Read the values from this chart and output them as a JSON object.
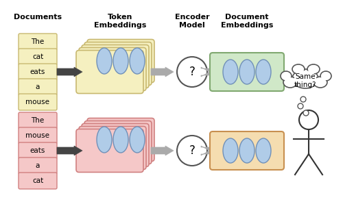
{
  "bg_color": "#ffffff",
  "doc1_words": [
    "The",
    "cat",
    "eats",
    "a",
    "mouse"
  ],
  "doc2_words": [
    "The",
    "mouse",
    "eats",
    "a",
    "cat"
  ],
  "doc1_word_color": "#f5f0c0",
  "doc1_word_border": "#c8b870",
  "doc2_word_color": "#f5c8c8",
  "doc2_word_border": "#d08080",
  "token_embed1_color": "#f5f0c0",
  "token_embed1_border": "#c8b870",
  "token_embed2_color": "#f5c8c8",
  "token_embed2_border": "#d08080",
  "doc_embed1_color": "#d0e8c8",
  "doc_embed1_border": "#80a870",
  "doc_embed2_color": "#f5ddb0",
  "doc_embed2_border": "#c89050",
  "circle_fill": "#b0cce8",
  "circle_border": "#7090b8",
  "headers": [
    "Documents",
    "Token\nEmbeddings",
    "Encoder\nModel",
    "Document\nEmbeddings"
  ],
  "arrow_color": "#444444",
  "outline_color": "#555555"
}
